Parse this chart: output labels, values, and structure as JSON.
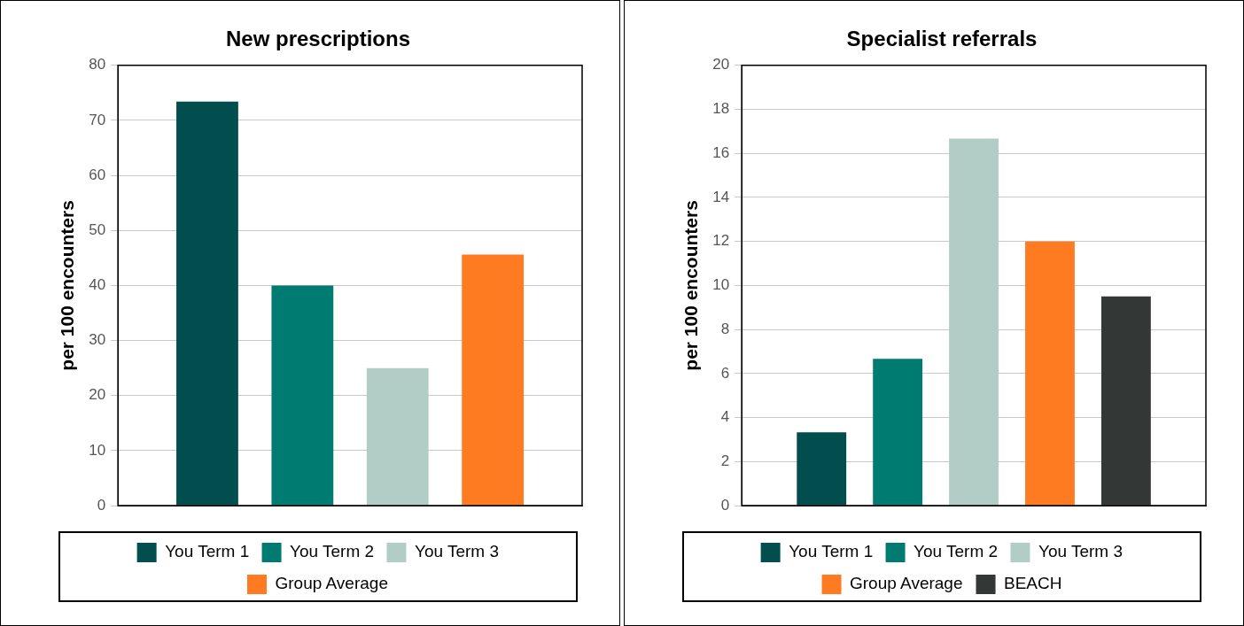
{
  "chart_data": [
    {
      "type": "bar",
      "title": "New prescriptions",
      "ylabel": "per 100 encounters",
      "categories": [
        null
      ],
      "series": [
        {
          "name": "You Term 1",
          "color": "#024e4f",
          "values": [
            73.4
          ]
        },
        {
          "name": "You Term 2",
          "color": "#007b71",
          "values": [
            40.0
          ]
        },
        {
          "name": "You Term 3",
          "color": "#b2cdc6",
          "values": [
            25.0
          ]
        },
        {
          "name": "Group Average",
          "color": "#ff7b21",
          "values": [
            45.6
          ]
        }
      ],
      "ylim": [
        0,
        80
      ],
      "yticks": [
        0,
        10,
        20,
        30,
        40,
        50,
        60,
        70,
        80
      ],
      "grid": "y",
      "legend": "bottom",
      "tick_labels": "y"
    },
    {
      "type": "bar",
      "title": "Specialist referrals",
      "ylabel": "per 100 encounters",
      "categories": [
        null
      ],
      "series": [
        {
          "name": "You Term 1",
          "color": "#024e4f",
          "values": [
            3.33
          ]
        },
        {
          "name": "You Term 2",
          "color": "#007b71",
          "values": [
            6.67
          ]
        },
        {
          "name": "You Term 3",
          "color": "#b2cdc6",
          "values": [
            16.67
          ]
        },
        {
          "name": "Group Average",
          "color": "#ff7b21",
          "values": [
            12.0
          ]
        },
        {
          "name": "BEACH",
          "color": "#333736",
          "values": [
            9.5
          ]
        }
      ],
      "ylim": [
        0,
        20
      ],
      "yticks": [
        0,
        2,
        4,
        6,
        8,
        10,
        12,
        14,
        16,
        18,
        20
      ],
      "grid": "y",
      "legend": "bottom",
      "tick_labels": "y"
    }
  ]
}
